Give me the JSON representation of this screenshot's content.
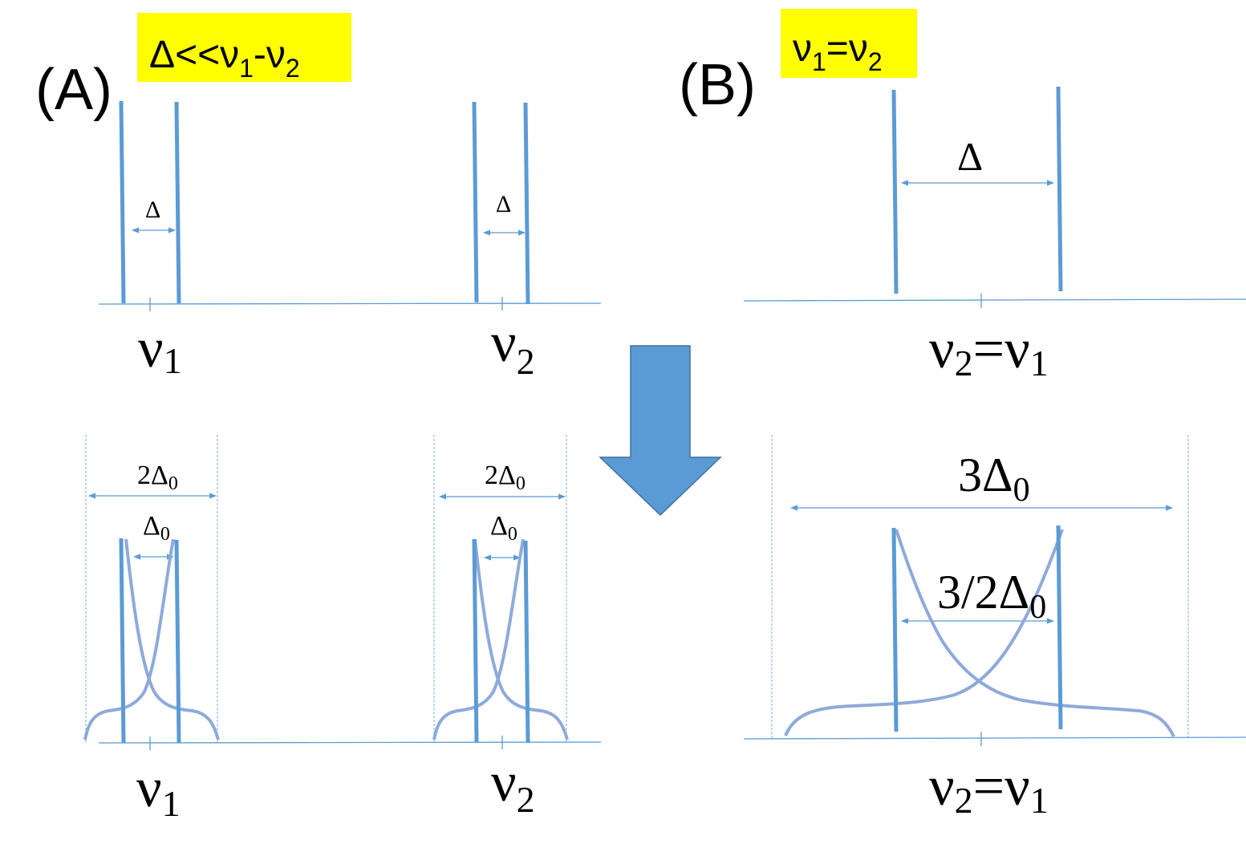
{
  "colors": {
    "line": "#5b9bd5",
    "curve": "#8eaadb",
    "highlight": "#ffff00",
    "arrow_fill": "#5b9bd5",
    "arrow_stroke": "#41719c",
    "text": "#000000"
  },
  "panel_a": {
    "label": "(A)",
    "condition": {
      "main": "Δ<<ν",
      "sub1": "1",
      "dash": "-ν",
      "sub2": "2"
    },
    "top": {
      "delta_left": "Δ",
      "delta_right": "Δ",
      "nu1": {
        "main": "ν",
        "sub": "1"
      },
      "nu2": {
        "main": "ν",
        "sub": "2"
      }
    },
    "bottom": {
      "outer_left": {
        "main": "2Δ",
        "sub": "0"
      },
      "inner_left": {
        "main": "Δ",
        "sub": "0"
      },
      "outer_right": {
        "main": "2Δ",
        "sub": "0"
      },
      "inner_right": {
        "main": "Δ",
        "sub": "0"
      },
      "nu1": {
        "main": "ν",
        "sub": "1"
      },
      "nu2": {
        "main": "ν",
        "sub": "2"
      }
    }
  },
  "panel_b": {
    "label": "(B)",
    "condition": {
      "main": "ν",
      "sub1": "1",
      "eq": "=ν",
      "sub2": "2"
    },
    "top": {
      "delta": "Δ",
      "axis_label": {
        "a": "ν",
        "sa": "2",
        "eq": "=ν",
        "sb": "1"
      }
    },
    "bottom": {
      "outer": {
        "main": "3Δ",
        "sub": "0"
      },
      "inner": {
        "main": "3/2Δ",
        "sub": "0"
      },
      "axis_label": {
        "a": "ν",
        "sa": "2",
        "eq": "=ν",
        "sb": "1"
      }
    }
  }
}
